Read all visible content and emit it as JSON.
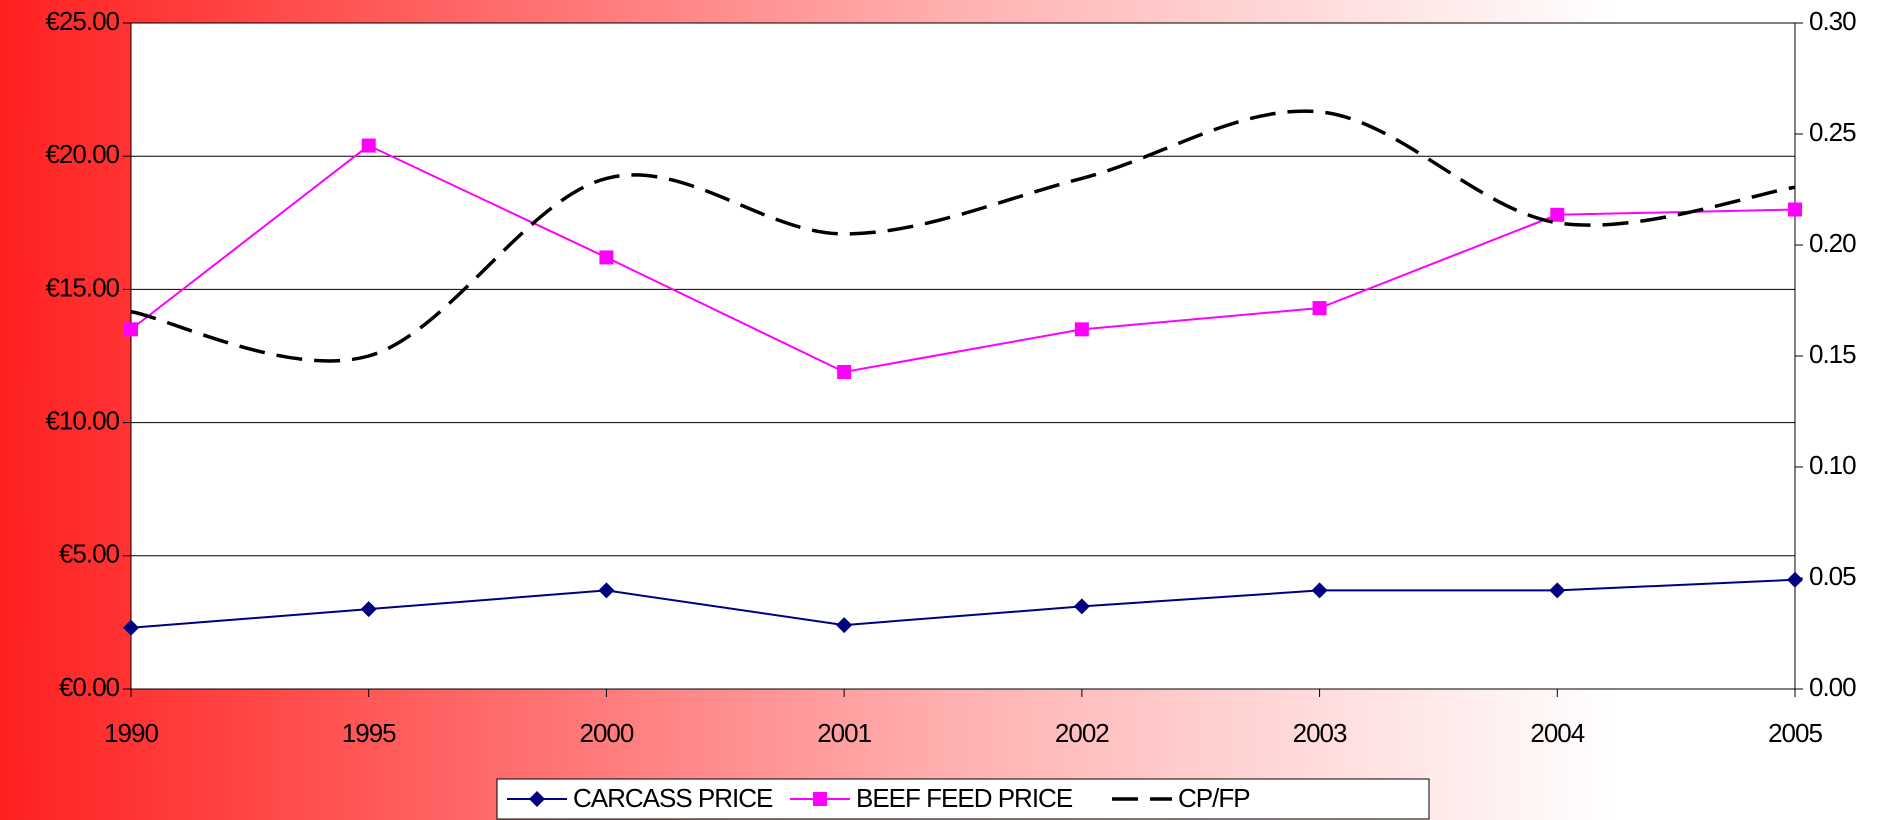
{
  "chart_data": {
    "type": "line",
    "categories": [
      "1990",
      "1995",
      "2000",
      "2001",
      "2002",
      "2003",
      "2004",
      "2005"
    ],
    "series": [
      {
        "name": "CARCASS PRICE",
        "color": "#000080",
        "values": [
          2.3,
          3.0,
          3.7,
          2.4,
          3.1,
          3.7,
          3.7,
          4.1
        ]
      },
      {
        "name": "BEEF FEED PRICE",
        "color": "#ff00ff",
        "values": [
          13.5,
          20.4,
          16.2,
          11.9,
          13.5,
          14.3,
          17.8,
          18.0
        ]
      },
      {
        "name": "CP/FP",
        "color": "#000000",
        "axis": "y2",
        "values": [
          0.17,
          0.15,
          0.23,
          0.205,
          0.23,
          0.26,
          0.21,
          0.226
        ]
      }
    ],
    "ylim": [
      0,
      25
    ],
    "yticks": [
      {
        "value": 0,
        "label": "€0.00"
      },
      {
        "value": 5,
        "label": "€5.00"
      },
      {
        "value": 10,
        "label": "€10.00"
      },
      {
        "value": 15,
        "label": "€15.00"
      },
      {
        "value": 20,
        "label": "€20.00"
      },
      {
        "value": 25,
        "label": "€25.00"
      }
    ],
    "y2lim": [
      0,
      0.3
    ],
    "y2ticks": [
      {
        "value": 0,
        "label": "0.00"
      },
      {
        "value": 0.05,
        "label": "0.05"
      },
      {
        "value": 0.1,
        "label": "0.10"
      },
      {
        "value": 0.15,
        "label": "0.15"
      },
      {
        "value": 0.2,
        "label": "0.20"
      },
      {
        "value": 0.25,
        "label": "0.25"
      },
      {
        "value": 0.3,
        "label": "0.30"
      }
    ],
    "grid": true,
    "legend": "bottom"
  }
}
